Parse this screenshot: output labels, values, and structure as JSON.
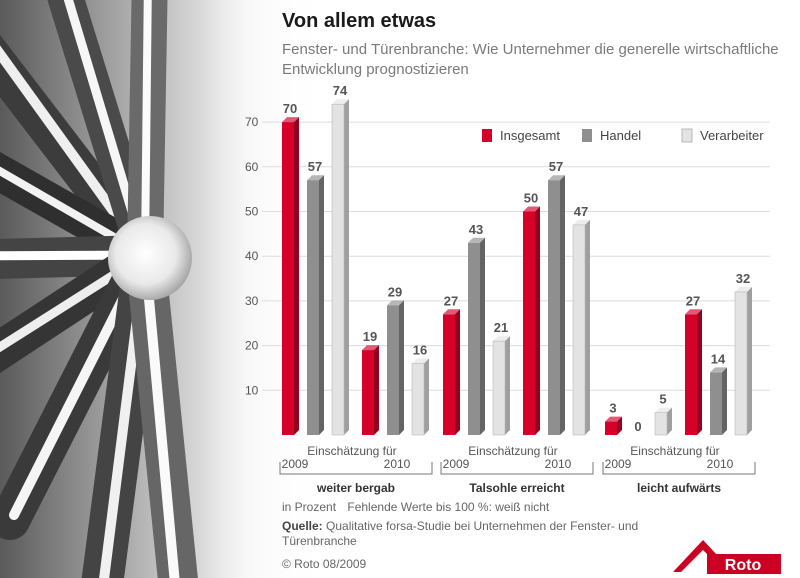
{
  "title": "Von allem etwas",
  "subtitle": "Fenster- und Türenbranche: Wie Unternehmer die generelle wirtschaftliche Entwicklung prognostizieren",
  "notes": {
    "unit": "in Prozent",
    "missing": "Fehlende Werte bis 100 %: weiß nicht",
    "source_label": "Quelle:",
    "source_text": "Qualitative forsa-Studie bei Unternehmen der Fenster- und Türenbranche",
    "copyright": "© Roto 08/2009"
  },
  "logo": {
    "text": "Roto",
    "color": "#cc0022"
  },
  "colors": {
    "insgesamt": "#d4002a",
    "handel": "#8f8f8f",
    "verarbeiter": "#e3e3e3"
  },
  "chart_data": {
    "type": "bar",
    "ylim": [
      0,
      74
    ],
    "yticks": [
      10,
      20,
      30,
      40,
      50,
      60,
      70
    ],
    "grid": true,
    "legend_position": "top-right",
    "legend": [
      "Insgesamt",
      "Handel",
      "Verarbeiter"
    ],
    "group_caption": "Einschätzung für",
    "categories": [
      {
        "name": "weiter bergab",
        "years": [
          {
            "year": "2009",
            "values": [
              70,
              57,
              74
            ]
          },
          {
            "year": "2010",
            "values": [
              19,
              29,
              16
            ]
          }
        ]
      },
      {
        "name": "Talsohle erreicht",
        "years": [
          {
            "year": "2009",
            "values": [
              27,
              43,
              21
            ]
          },
          {
            "year": "2010",
            "values": [
              50,
              57,
              47
            ]
          }
        ]
      },
      {
        "name": "leicht aufwärts",
        "years": [
          {
            "year": "2009",
            "values": [
              3,
              0,
              5
            ]
          },
          {
            "year": "2010",
            "values": [
              27,
              14,
              32
            ]
          }
        ]
      }
    ]
  }
}
